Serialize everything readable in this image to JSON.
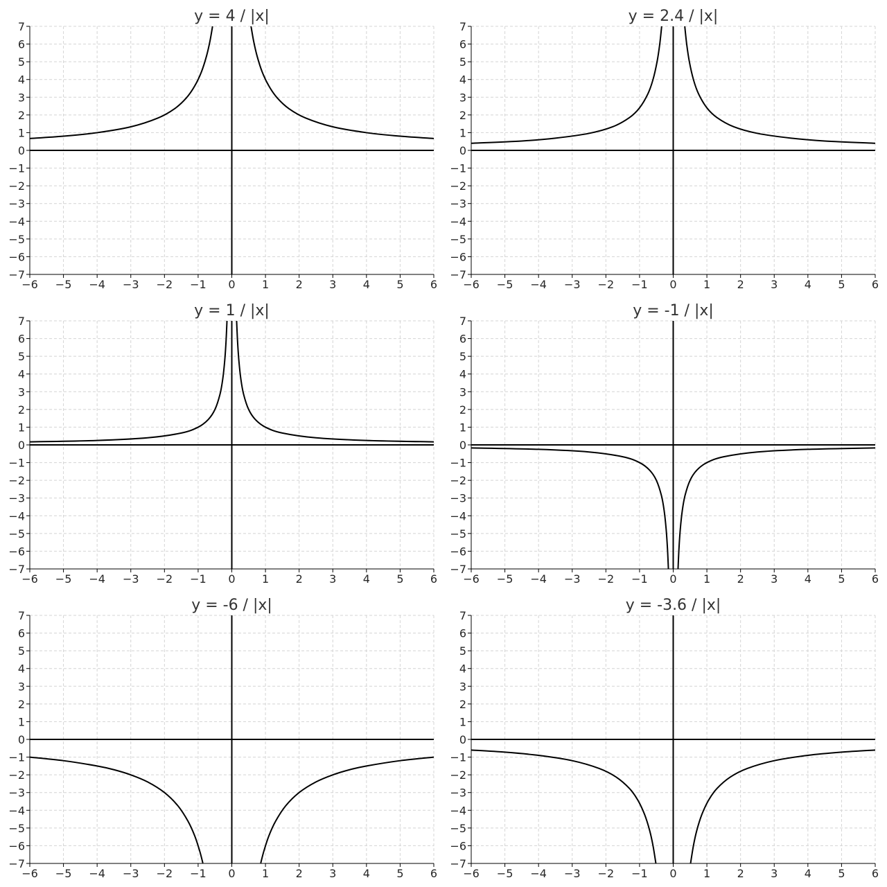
{
  "chart_data": [
    {
      "type": "line",
      "title": "y = 4 / |x|",
      "color": "#000000",
      "grid": true,
      "x": [
        -6,
        -5,
        -4,
        -3,
        -2.2,
        -1.7,
        -1.35,
        -1.1,
        -0.9,
        -0.75,
        -0.65,
        -0.57,
        0,
        0.57,
        0.65,
        0.75,
        0.9,
        1.1,
        1.35,
        1.7,
        2.2,
        3,
        4,
        5,
        6
      ],
      "values": [
        0.67,
        0.8,
        1,
        1.33,
        1.82,
        2.35,
        2.96,
        3.64,
        4.44,
        5.33,
        6.15,
        7.02,
        null,
        7.02,
        6.15,
        5.33,
        4.44,
        3.64,
        2.96,
        2.35,
        1.82,
        1.33,
        1,
        0.8,
        0.67
      ],
      "xlim": [
        -6,
        6
      ],
      "ylim": [
        -7,
        7
      ],
      "xticks": [
        {
          "value": -6,
          "label": "−6"
        },
        {
          "value": -5,
          "label": "−5"
        },
        {
          "value": -4,
          "label": "−4"
        },
        {
          "value": -3,
          "label": "−3"
        },
        {
          "value": -2,
          "label": "−2"
        },
        {
          "value": -1,
          "label": "−1"
        },
        0,
        1,
        2,
        3,
        4,
        5,
        6
      ],
      "yticks": [
        {
          "value": -7,
          "label": "−7"
        },
        {
          "value": -6,
          "label": "−6"
        },
        {
          "value": -5,
          "label": "−5"
        },
        {
          "value": -4,
          "label": "−4"
        },
        {
          "value": -3,
          "label": "−3"
        },
        {
          "value": -2,
          "label": "−2"
        },
        {
          "value": -1,
          "label": "−1"
        },
        0,
        1,
        2,
        3,
        4,
        5,
        6,
        7
      ]
    },
    {
      "type": "line",
      "title": "y = 2.4 / |x|",
      "color": "#000000",
      "grid": true,
      "x": [
        -6,
        -4.5,
        -3.5,
        -2.5,
        -1.8,
        -1.3,
        -1,
        -0.75,
        -0.6,
        -0.48,
        -0.4,
        -0.34,
        0,
        0.34,
        0.4,
        0.48,
        0.6,
        0.75,
        1,
        1.3,
        1.8,
        2.5,
        3.5,
        4.5,
        6
      ],
      "values": [
        0.4,
        0.53,
        0.69,
        0.96,
        1.33,
        1.85,
        2.4,
        3.2,
        4,
        5,
        6,
        7.06,
        null,
        7.06,
        6,
        5,
        4,
        3.2,
        2.4,
        1.85,
        1.33,
        0.96,
        0.69,
        0.53,
        0.4
      ],
      "xlim": [
        -6,
        6
      ],
      "ylim": [
        -7,
        7
      ],
      "xticks": [
        {
          "value": -6,
          "label": "−6"
        },
        {
          "value": -5,
          "label": "−5"
        },
        {
          "value": -4,
          "label": "−4"
        },
        {
          "value": -3,
          "label": "−3"
        },
        {
          "value": -2,
          "label": "−2"
        },
        {
          "value": -1,
          "label": "−1"
        },
        0,
        1,
        2,
        3,
        4,
        5,
        6
      ],
      "yticks": [
        {
          "value": -7,
          "label": "−7"
        },
        {
          "value": -6,
          "label": "−6"
        },
        {
          "value": -5,
          "label": "−5"
        },
        {
          "value": -4,
          "label": "−4"
        },
        {
          "value": -3,
          "label": "−3"
        },
        {
          "value": -2,
          "label": "−2"
        },
        {
          "value": -1,
          "label": "−1"
        },
        0,
        1,
        2,
        3,
        4,
        5,
        6,
        7
      ]
    },
    {
      "type": "line",
      "title": "y = 1 / |x|",
      "color": "#000000",
      "grid": true,
      "x": [
        -6,
        -4,
        -2.5,
        -1.5,
        -1,
        -0.7,
        -0.5,
        -0.35,
        -0.27,
        -0.21,
        -0.17,
        -0.14,
        0,
        0.14,
        0.17,
        0.21,
        0.27,
        0.35,
        0.5,
        0.7,
        1,
        1.5,
        2.5,
        4,
        6
      ],
      "values": [
        0.17,
        0.25,
        0.4,
        0.67,
        1,
        1.43,
        2,
        2.86,
        3.7,
        4.76,
        5.88,
        7.14,
        null,
        7.14,
        5.88,
        4.76,
        3.7,
        2.86,
        2,
        1.43,
        1,
        0.67,
        0.4,
        0.25,
        0.17
      ],
      "xlim": [
        -6,
        6
      ],
      "ylim": [
        -7,
        7
      ],
      "xticks": [
        {
          "value": -6,
          "label": "−6"
        },
        {
          "value": -5,
          "label": "−5"
        },
        {
          "value": -4,
          "label": "−4"
        },
        {
          "value": -3,
          "label": "−3"
        },
        {
          "value": -2,
          "label": "−2"
        },
        {
          "value": -1,
          "label": "−1"
        },
        0,
        1,
        2,
        3,
        4,
        5,
        6
      ],
      "yticks": [
        {
          "value": -7,
          "label": "−7"
        },
        {
          "value": -6,
          "label": "−6"
        },
        {
          "value": -5,
          "label": "−5"
        },
        {
          "value": -4,
          "label": "−4"
        },
        {
          "value": -3,
          "label": "−3"
        },
        {
          "value": -2,
          "label": "−2"
        },
        {
          "value": -1,
          "label": "−1"
        },
        0,
        1,
        2,
        3,
        4,
        5,
        6,
        7
      ]
    },
    {
      "type": "line",
      "title": "y = -1 / |x|",
      "color": "#000000",
      "grid": true,
      "x": [
        -6,
        -4,
        -2.5,
        -1.5,
        -1,
        -0.7,
        -0.5,
        -0.35,
        -0.27,
        -0.21,
        -0.17,
        -0.14,
        0,
        0.14,
        0.17,
        0.21,
        0.27,
        0.35,
        0.5,
        0.7,
        1,
        1.5,
        2.5,
        4,
        6
      ],
      "values": [
        -0.17,
        -0.25,
        -0.4,
        -0.67,
        -1,
        -1.43,
        -2,
        -2.86,
        -3.7,
        -4.76,
        -5.88,
        -7.14,
        null,
        -7.14,
        -5.88,
        -4.76,
        -3.7,
        -2.86,
        -2,
        -1.43,
        -1,
        -0.67,
        -0.4,
        -0.25,
        -0.17
      ],
      "xlim": [
        -6,
        6
      ],
      "ylim": [
        -7,
        7
      ],
      "xticks": [
        {
          "value": -6,
          "label": "−6"
        },
        {
          "value": -5,
          "label": "−5"
        },
        {
          "value": -4,
          "label": "−4"
        },
        {
          "value": -3,
          "label": "−3"
        },
        {
          "value": -2,
          "label": "−2"
        },
        {
          "value": -1,
          "label": "−1"
        },
        0,
        1,
        2,
        3,
        4,
        5,
        6
      ],
      "yticks": [
        {
          "value": -7,
          "label": "−7"
        },
        {
          "value": -6,
          "label": "−6"
        },
        {
          "value": -5,
          "label": "−5"
        },
        {
          "value": -4,
          "label": "−4"
        },
        {
          "value": -3,
          "label": "−3"
        },
        {
          "value": -2,
          "label": "−2"
        },
        {
          "value": -1,
          "label": "−1"
        },
        0,
        1,
        2,
        3,
        4,
        5,
        6,
        7
      ]
    },
    {
      "type": "line",
      "title": "y = -6 / |x|",
      "color": "#000000",
      "grid": true,
      "x": [
        -6,
        -5,
        -4,
        -3.5,
        -3,
        -2.5,
        -2,
        -1.6,
        -1.3,
        -1.1,
        -0.95,
        -0.86,
        0,
        0.86,
        0.95,
        1.1,
        1.3,
        1.6,
        2,
        2.5,
        3,
        3.5,
        4,
        5,
        6
      ],
      "values": [
        -1,
        -1.2,
        -1.5,
        -1.71,
        -2,
        -2.4,
        -3,
        -3.75,
        -4.62,
        -5.45,
        -6.32,
        -6.98,
        null,
        -6.98,
        -6.32,
        -5.45,
        -4.62,
        -3.75,
        -3,
        -2.4,
        -2,
        -1.71,
        -1.5,
        -1.2,
        -1
      ],
      "xlim": [
        -6,
        6
      ],
      "ylim": [
        -7,
        7
      ],
      "xticks": [
        {
          "value": -6,
          "label": "−6"
        },
        {
          "value": -5,
          "label": "−5"
        },
        {
          "value": -4,
          "label": "−4"
        },
        {
          "value": -3,
          "label": "−3"
        },
        {
          "value": -2,
          "label": "−2"
        },
        {
          "value": -1,
          "label": "−1"
        },
        0,
        1,
        2,
        3,
        4,
        5,
        6
      ],
      "yticks": [
        {
          "value": -7,
          "label": "−7"
        },
        {
          "value": -6,
          "label": "−6"
        },
        {
          "value": -5,
          "label": "−5"
        },
        {
          "value": -4,
          "label": "−4"
        },
        {
          "value": -3,
          "label": "−3"
        },
        {
          "value": -2,
          "label": "−2"
        },
        {
          "value": -1,
          "label": "−1"
        },
        0,
        1,
        2,
        3,
        4,
        5,
        6,
        7
      ]
    },
    {
      "type": "line",
      "title": "y = -3.6 / |x|",
      "color": "#000000",
      "grid": true,
      "x": [
        -6,
        -5,
        -4,
        -3,
        -2.2,
        -1.7,
        -1.3,
        -1.05,
        -0.85,
        -0.7,
        -0.6,
        -0.51,
        0,
        0.51,
        0.6,
        0.7,
        0.85,
        1.05,
        1.3,
        1.7,
        2.2,
        3,
        4,
        5,
        6
      ],
      "values": [
        -0.6,
        -0.72,
        -0.9,
        -1.2,
        -1.64,
        -2.12,
        -2.77,
        -3.43,
        -4.24,
        -5.14,
        -6,
        -7.06,
        null,
        -7.06,
        -6,
        -5.14,
        -4.24,
        -3.43,
        -2.77,
        -2.12,
        -1.64,
        -1.2,
        -0.9,
        -0.72,
        -0.6
      ],
      "xlim": [
        -6,
        6
      ],
      "ylim": [
        -7,
        7
      ],
      "xticks": [
        {
          "value": -6,
          "label": "−6"
        },
        {
          "value": -5,
          "label": "−5"
        },
        {
          "value": -4,
          "label": "−4"
        },
        {
          "value": -3,
          "label": "−3"
        },
        {
          "value": -2,
          "label": "−2"
        },
        {
          "value": -1,
          "label": "−1"
        },
        0,
        1,
        2,
        3,
        4,
        5,
        6
      ],
      "yticks": [
        {
          "value": -7,
          "label": "−7"
        },
        {
          "value": -6,
          "label": "−6"
        },
        {
          "value": -5,
          "label": "−5"
        },
        {
          "value": -4,
          "label": "−4"
        },
        {
          "value": -3,
          "label": "−3"
        },
        {
          "value": -2,
          "label": "−2"
        },
        {
          "value": -1,
          "label": "−1"
        },
        0,
        1,
        2,
        3,
        4,
        5,
        6,
        7
      ]
    }
  ]
}
